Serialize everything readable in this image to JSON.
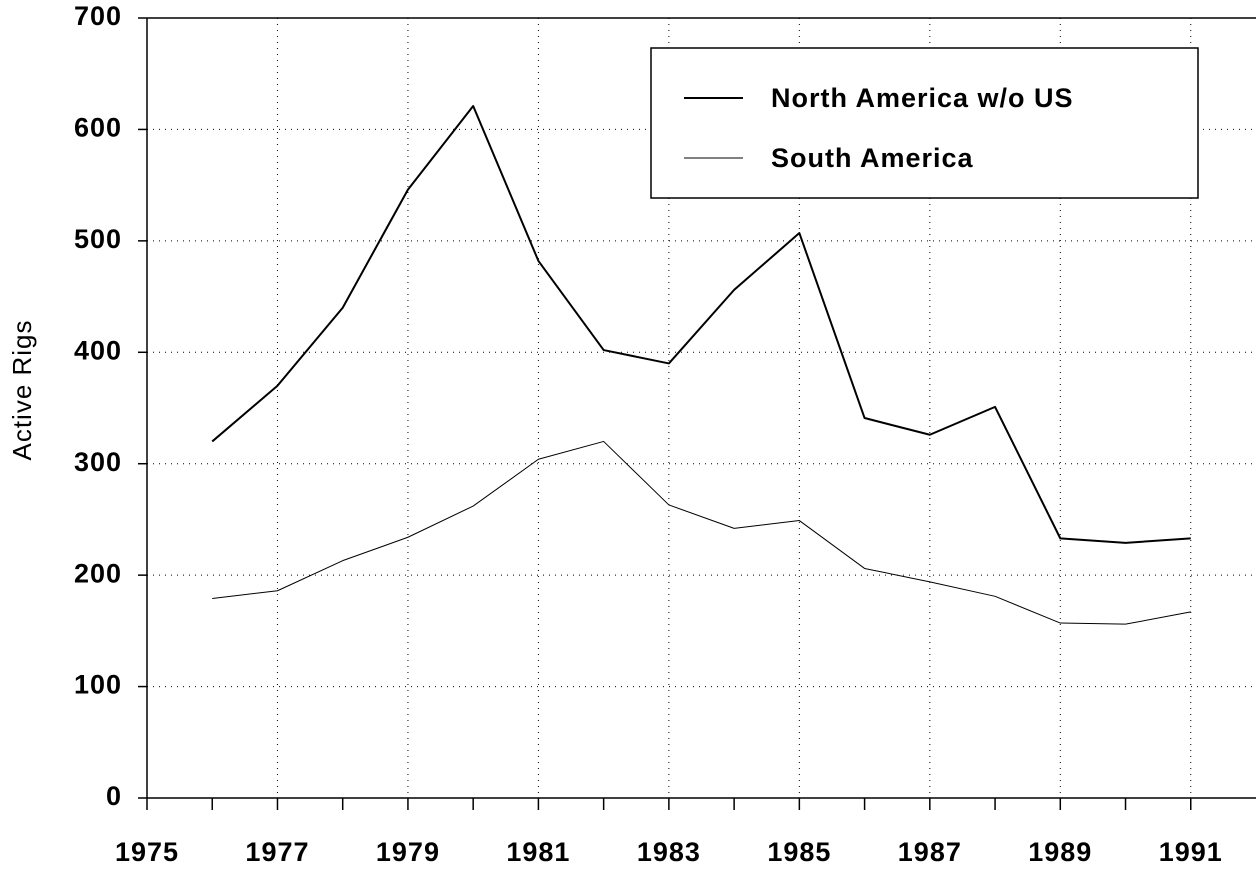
{
  "chart_data": {
    "type": "line",
    "ylabel": "Active Rigs",
    "x": [
      1976,
      1977,
      1978,
      1979,
      1980,
      1981,
      1982,
      1983,
      1984,
      1985,
      1986,
      1987,
      1988,
      1989,
      1990,
      1991
    ],
    "series": [
      {
        "name": "North America w/o US",
        "color": "#000000",
        "width": 2,
        "values": [
          320,
          370,
          440,
          546,
          621,
          482,
          402,
          390,
          456,
          507,
          341,
          326,
          351,
          233,
          229,
          233
        ]
      },
      {
        "name": "South America",
        "color": "#000000",
        "width": 1,
        "values": [
          179,
          186,
          213,
          234,
          262,
          304,
          320,
          263,
          242,
          249,
          206,
          194,
          181,
          157,
          156,
          167
        ]
      }
    ],
    "xlim": [
      1975,
      1992
    ],
    "xticks": [
      1975,
      1977,
      1979,
      1981,
      1983,
      1985,
      1987,
      1989,
      1991
    ],
    "xminorticks": [
      1976,
      1978,
      1980,
      1982,
      1984,
      1986,
      1988,
      1990
    ],
    "ylim": [
      0,
      700
    ],
    "yticks": [
      0,
      100,
      200,
      300,
      400,
      500,
      600,
      700
    ],
    "grid": true,
    "legend": "upper right"
  }
}
